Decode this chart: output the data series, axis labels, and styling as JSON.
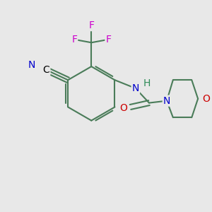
{
  "background_color": "#e8e8e8",
  "bond_color": "#4a7c59",
  "bond_width": 1.5,
  "N_color": "#0000cc",
  "O_color": "#cc0000",
  "F_color": "#cc00cc",
  "C_color": "#000000",
  "H_color": "#2e8b57",
  "font_size": 10,
  "figsize": [
    3.0,
    3.0
  ],
  "dpi": 100,
  "xlim": [
    0,
    10
  ],
  "ylim": [
    0,
    10
  ]
}
